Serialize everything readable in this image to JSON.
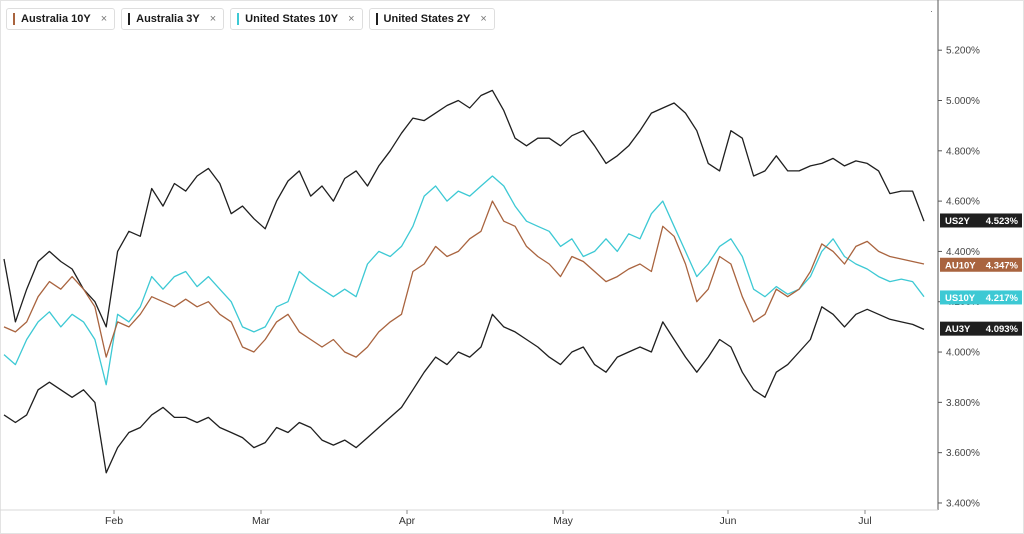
{
  "tabs": [
    {
      "label": "Australia 10Y",
      "color": "#a9643f"
    },
    {
      "label": "Australia 3Y",
      "color": "#1f1f1f"
    },
    {
      "label": "United States 10Y",
      "color": "#3dc9d4"
    },
    {
      "label": "United States 2Y",
      "color": "#1f1f1f"
    }
  ],
  "close_glyph": "×",
  "menu_glyph": "·",
  "chart_data": {
    "type": "line",
    "x_tick_labels": [
      "Feb",
      "Mar",
      "Apr",
      "May",
      "Jun",
      "Jul"
    ],
    "y_tick_labels": [
      "3.400%",
      "3.600%",
      "3.800%",
      "4.000%",
      "4.200%",
      "4.400%",
      "4.600%",
      "4.800%",
      "5.000%",
      "5.200%"
    ],
    "ylim": [
      3.38,
      5.32
    ],
    "x_start": "2023-01-04",
    "x_end": "2023-07-13",
    "grid": false,
    "series": [
      {
        "name": "United States 2Y",
        "badge": "US2Y",
        "last_label": "4.523%",
        "color": "#1f1f1f",
        "values": [
          4.37,
          4.12,
          4.25,
          4.36,
          4.4,
          4.36,
          4.33,
          4.25,
          4.2,
          4.1,
          4.4,
          4.48,
          4.46,
          4.65,
          4.58,
          4.67,
          4.64,
          4.7,
          4.73,
          4.67,
          4.55,
          4.58,
          4.53,
          4.49,
          4.6,
          4.68,
          4.72,
          4.62,
          4.66,
          4.6,
          4.69,
          4.72,
          4.66,
          4.74,
          4.8,
          4.87,
          4.93,
          4.92,
          4.95,
          4.98,
          5.0,
          4.97,
          5.02,
          5.04,
          4.96,
          4.85,
          4.82,
          4.85,
          4.85,
          4.82,
          4.86,
          4.88,
          4.82,
          4.75,
          4.78,
          4.82,
          4.88,
          4.95,
          4.97,
          4.99,
          4.95,
          4.88,
          4.75,
          4.72,
          4.88,
          4.85,
          4.7,
          4.72,
          4.78,
          4.72,
          4.72,
          4.74,
          4.75,
          4.77,
          4.74,
          4.76,
          4.75,
          4.72,
          4.63,
          4.64,
          4.64,
          4.52
        ]
      },
      {
        "name": "United States 10Y",
        "badge": "US10Y",
        "last_label": "4.217%",
        "color": "#3dc9d4",
        "values": [
          3.99,
          3.95,
          4.05,
          4.12,
          4.16,
          4.1,
          4.15,
          4.12,
          4.05,
          3.87,
          4.15,
          4.12,
          4.18,
          4.3,
          4.25,
          4.3,
          4.32,
          4.26,
          4.3,
          4.25,
          4.2,
          4.1,
          4.08,
          4.1,
          4.18,
          4.2,
          4.32,
          4.28,
          4.25,
          4.22,
          4.25,
          4.22,
          4.35,
          4.4,
          4.38,
          4.42,
          4.5,
          4.62,
          4.66,
          4.6,
          4.64,
          4.62,
          4.66,
          4.7,
          4.66,
          4.58,
          4.52,
          4.5,
          4.48,
          4.42,
          4.45,
          4.38,
          4.4,
          4.45,
          4.4,
          4.47,
          4.45,
          4.55,
          4.6,
          4.5,
          4.4,
          4.3,
          4.35,
          4.42,
          4.45,
          4.38,
          4.25,
          4.22,
          4.26,
          4.23,
          4.25,
          4.3,
          4.4,
          4.45,
          4.38,
          4.35,
          4.33,
          4.3,
          4.28,
          4.29,
          4.28,
          4.22
        ]
      },
      {
        "name": "Australia 10Y",
        "badge": "AU10Y",
        "last_label": "4.347%",
        "color": "#a9643f",
        "values": [
          4.1,
          4.08,
          4.12,
          4.22,
          4.28,
          4.25,
          4.3,
          4.25,
          4.18,
          3.98,
          4.12,
          4.1,
          4.15,
          4.22,
          4.2,
          4.18,
          4.21,
          4.18,
          4.2,
          4.15,
          4.12,
          4.02,
          4.0,
          4.05,
          4.12,
          4.15,
          4.08,
          4.05,
          4.02,
          4.05,
          4.0,
          3.98,
          4.02,
          4.08,
          4.12,
          4.15,
          4.32,
          4.35,
          4.42,
          4.38,
          4.4,
          4.45,
          4.48,
          4.6,
          4.52,
          4.5,
          4.42,
          4.38,
          4.35,
          4.3,
          4.38,
          4.36,
          4.32,
          4.28,
          4.3,
          4.33,
          4.35,
          4.32,
          4.5,
          4.46,
          4.35,
          4.2,
          4.25,
          4.38,
          4.35,
          4.22,
          4.12,
          4.15,
          4.25,
          4.22,
          4.25,
          4.32,
          4.43,
          4.4,
          4.35,
          4.42,
          4.44,
          4.4,
          4.38,
          4.37,
          4.36,
          4.35
        ]
      },
      {
        "name": "Australia 3Y",
        "badge": "AU3Y",
        "last_label": "4.093%",
        "color": "#1f1f1f",
        "values": [
          3.75,
          3.72,
          3.75,
          3.85,
          3.88,
          3.85,
          3.82,
          3.85,
          3.8,
          3.52,
          3.62,
          3.68,
          3.7,
          3.75,
          3.78,
          3.74,
          3.74,
          3.72,
          3.74,
          3.7,
          3.68,
          3.66,
          3.62,
          3.64,
          3.7,
          3.68,
          3.72,
          3.7,
          3.65,
          3.63,
          3.65,
          3.62,
          3.66,
          3.7,
          3.74,
          3.78,
          3.85,
          3.92,
          3.98,
          3.95,
          4.0,
          3.98,
          4.02,
          4.15,
          4.1,
          4.08,
          4.05,
          4.02,
          3.98,
          3.95,
          4.0,
          4.02,
          3.95,
          3.92,
          3.98,
          4.0,
          4.02,
          4.0,
          4.12,
          4.05,
          3.98,
          3.92,
          3.98,
          4.05,
          4.02,
          3.92,
          3.85,
          3.82,
          3.92,
          3.95,
          4.0,
          4.05,
          4.18,
          4.15,
          4.1,
          4.15,
          4.17,
          4.15,
          4.13,
          4.12,
          4.11,
          4.09
        ]
      }
    ]
  }
}
